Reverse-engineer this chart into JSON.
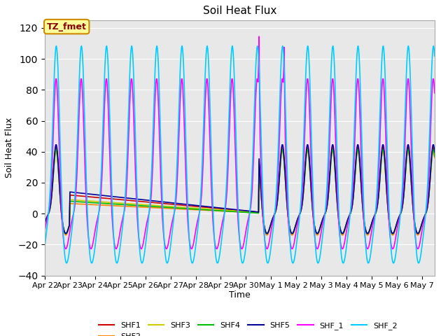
{
  "title": "Soil Heat Flux",
  "ylabel": "Soil Heat Flux",
  "xlabel": "Time",
  "ylim": [
    -40,
    125
  ],
  "yticks": [
    -40,
    -20,
    0,
    20,
    40,
    60,
    80,
    100,
    120
  ],
  "xtick_labels": [
    "Apr 22",
    "Apr 23",
    "Apr 24",
    "Apr 25",
    "Apr 26",
    "Apr 27",
    "Apr 28",
    "Apr 29",
    "Apr 30",
    "May 1",
    "May 2",
    "May 3",
    "May 4",
    "May 5",
    "May 6",
    "May 7"
  ],
  "background_color": "#e8e8e8",
  "series_colors": {
    "SHF1": "#cc0000",
    "SHF2": "#ff8800",
    "SHF3": "#cccc00",
    "SHF4": "#00bb00",
    "SHF5": "#000099",
    "SHF_1": "#ff00ff",
    "SHF_2": "#00ccff"
  },
  "annotation_text": "TZ_fmet",
  "annotation_bg": "#ffff99",
  "annotation_border": "#cc8800"
}
